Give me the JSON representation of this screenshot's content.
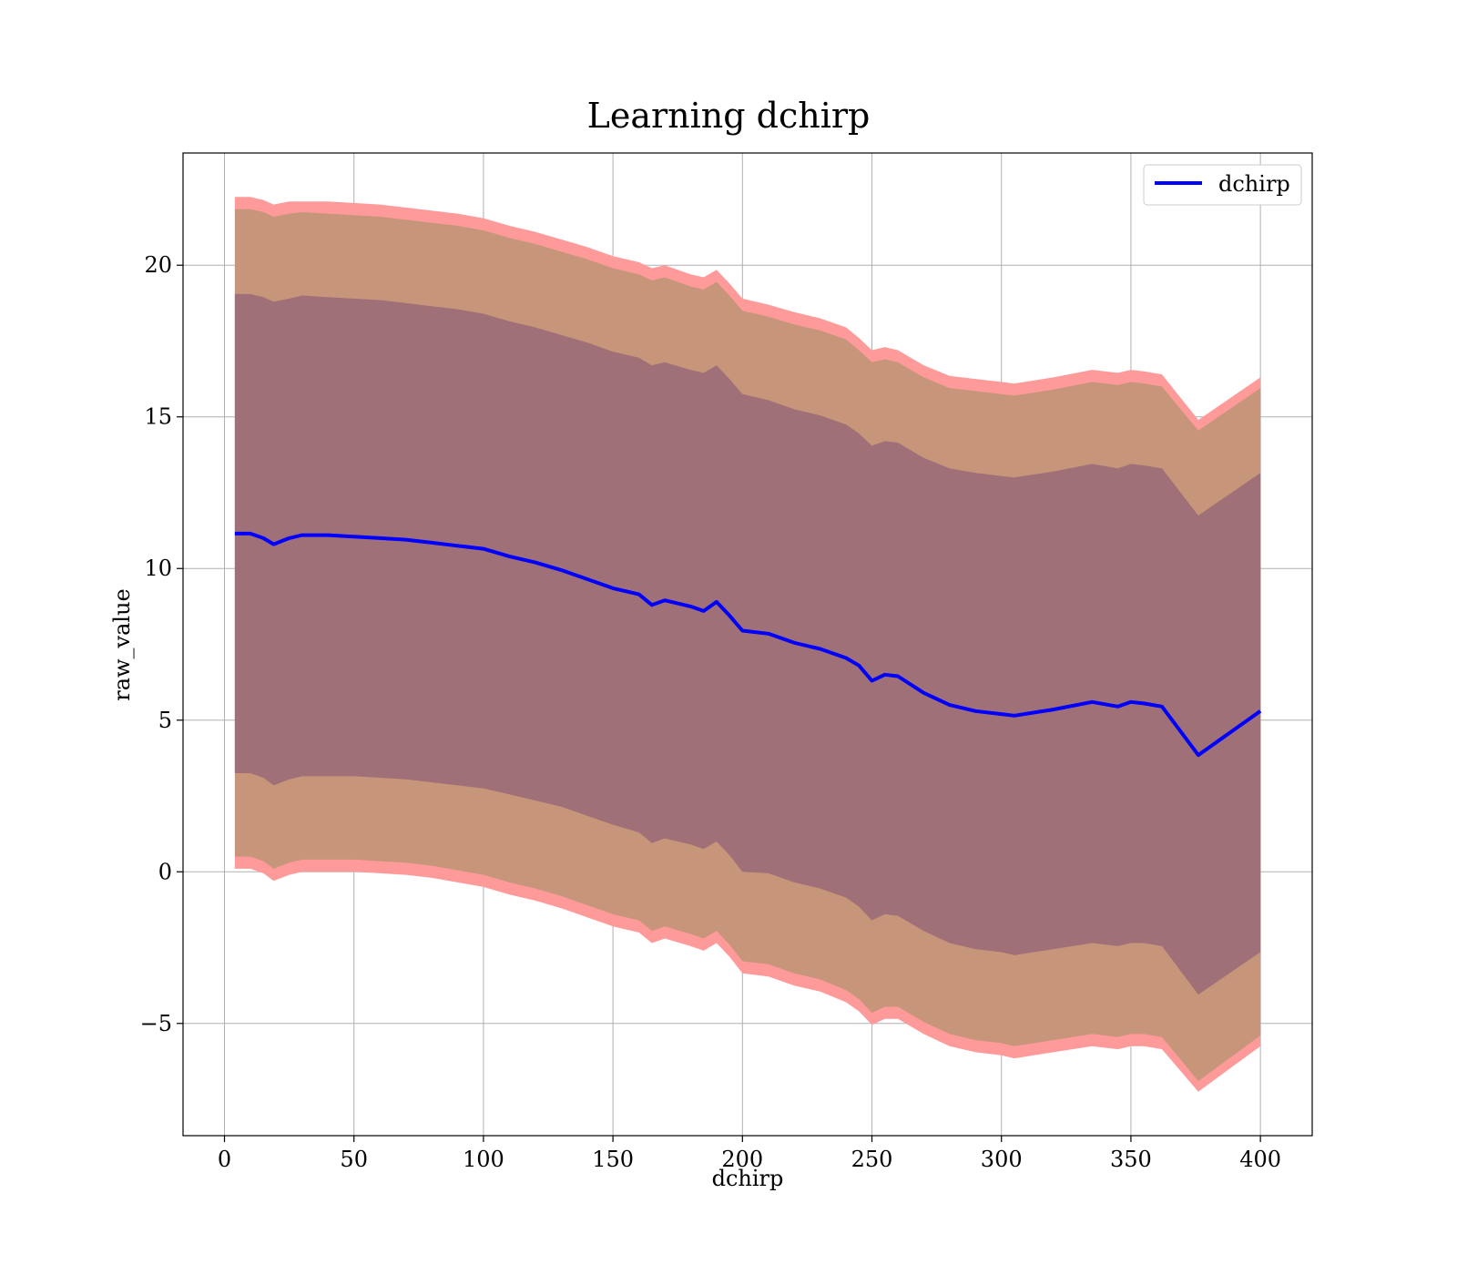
{
  "chart_data": {
    "type": "line",
    "title": "Learning dchirp",
    "xlabel": "dchirp",
    "ylabel": "raw_value",
    "xlim": [
      -16,
      420
    ],
    "ylim": [
      -8.7,
      23.7
    ],
    "xticks": [
      0,
      50,
      100,
      150,
      200,
      250,
      300,
      350,
      400
    ],
    "xtick_labels": [
      "0",
      "50",
      "100",
      "150",
      "200",
      "250",
      "300",
      "350",
      "400"
    ],
    "yticks": [
      -5,
      0,
      5,
      10,
      15,
      20
    ],
    "ytick_labels": [
      "−5",
      "0",
      "5",
      "10",
      "15",
      "20"
    ],
    "grid": true,
    "legend": {
      "placement": "top-right",
      "entries": [
        "dchirp"
      ]
    },
    "colors": {
      "line": "#0000ff",
      "band_outer": "#ff9a9a",
      "band_mid": "#c7967a",
      "band_inner": "#a07078"
    },
    "x": [
      4,
      10,
      15,
      19,
      25,
      30,
      40,
      50,
      60,
      70,
      80,
      90,
      100,
      110,
      120,
      130,
      140,
      150,
      160,
      165,
      170,
      180,
      185,
      190,
      195,
      200,
      210,
      220,
      230,
      240,
      245,
      250,
      255,
      260,
      270,
      280,
      290,
      300,
      305,
      320,
      335,
      345,
      350,
      355,
      362,
      376,
      400
    ],
    "series": [
      {
        "name": "dchirp",
        "values": [
          11.15,
          11.15,
          11.0,
          10.8,
          11.0,
          11.1,
          11.1,
          11.05,
          11.0,
          10.95,
          10.85,
          10.75,
          10.65,
          10.4,
          10.2,
          9.95,
          9.65,
          9.35,
          9.15,
          8.8,
          8.95,
          8.75,
          8.6,
          8.9,
          8.45,
          7.95,
          7.85,
          7.55,
          7.35,
          7.05,
          6.8,
          6.3,
          6.5,
          6.45,
          5.9,
          5.5,
          5.3,
          5.2,
          5.15,
          5.35,
          5.6,
          5.45,
          5.6,
          5.55,
          5.45,
          3.85,
          5.3
        ]
      }
    ],
    "bands": {
      "outer_upper": [
        22.25,
        22.25,
        22.15,
        22.0,
        22.1,
        22.1,
        22.1,
        22.05,
        22.0,
        21.9,
        21.8,
        21.7,
        21.55,
        21.3,
        21.1,
        20.85,
        20.6,
        20.3,
        20.1,
        19.9,
        20.0,
        19.7,
        19.6,
        19.85,
        19.4,
        18.9,
        18.7,
        18.45,
        18.25,
        17.95,
        17.6,
        17.2,
        17.3,
        17.2,
        16.7,
        16.35,
        16.25,
        16.15,
        16.1,
        16.3,
        16.55,
        16.45,
        16.55,
        16.5,
        16.4,
        14.9,
        16.3
      ],
      "mid_upper": [
        21.85,
        21.85,
        21.75,
        21.6,
        21.7,
        21.75,
        21.7,
        21.65,
        21.6,
        21.5,
        21.4,
        21.3,
        21.15,
        20.9,
        20.7,
        20.45,
        20.2,
        19.9,
        19.7,
        19.5,
        19.6,
        19.3,
        19.2,
        19.45,
        19.0,
        18.5,
        18.3,
        18.05,
        17.85,
        17.55,
        17.2,
        16.8,
        16.9,
        16.8,
        16.3,
        15.95,
        15.85,
        15.75,
        15.7,
        15.9,
        16.15,
        16.05,
        16.15,
        16.1,
        16.0,
        14.55,
        15.95
      ],
      "inner_upper": [
        19.05,
        19.05,
        18.95,
        18.8,
        18.9,
        19.0,
        18.95,
        18.9,
        18.85,
        18.75,
        18.65,
        18.55,
        18.4,
        18.15,
        17.95,
        17.7,
        17.45,
        17.15,
        16.95,
        16.7,
        16.8,
        16.55,
        16.45,
        16.7,
        16.25,
        15.75,
        15.55,
        15.25,
        15.05,
        14.75,
        14.45,
        14.05,
        14.2,
        14.15,
        13.65,
        13.3,
        13.15,
        13.05,
        13.0,
        13.2,
        13.45,
        13.3,
        13.45,
        13.4,
        13.3,
        11.75,
        13.15
      ],
      "inner_lower": [
        3.25,
        3.25,
        3.1,
        2.85,
        3.05,
        3.15,
        3.15,
        3.15,
        3.1,
        3.05,
        2.95,
        2.85,
        2.75,
        2.55,
        2.35,
        2.15,
        1.85,
        1.55,
        1.3,
        0.95,
        1.1,
        0.9,
        0.75,
        1.0,
        0.55,
        0.0,
        -0.05,
        -0.35,
        -0.55,
        -0.85,
        -1.15,
        -1.6,
        -1.4,
        -1.45,
        -1.95,
        -2.35,
        -2.55,
        -2.65,
        -2.75,
        -2.55,
        -2.35,
        -2.45,
        -2.35,
        -2.35,
        -2.45,
        -4.05,
        -2.65
      ],
      "mid_lower": [
        0.5,
        0.5,
        0.35,
        0.1,
        0.3,
        0.4,
        0.4,
        0.4,
        0.35,
        0.3,
        0.2,
        0.05,
        -0.1,
        -0.35,
        -0.55,
        -0.8,
        -1.1,
        -1.4,
        -1.6,
        -1.95,
        -1.8,
        -2.05,
        -2.2,
        -1.95,
        -2.4,
        -2.95,
        -3.05,
        -3.35,
        -3.55,
        -3.9,
        -4.2,
        -4.65,
        -4.45,
        -4.45,
        -4.95,
        -5.35,
        -5.55,
        -5.65,
        -5.75,
        -5.55,
        -5.35,
        -5.45,
        -5.35,
        -5.35,
        -5.45,
        -6.9,
        -5.4
      ],
      "outer_lower": [
        0.1,
        0.1,
        -0.05,
        -0.3,
        -0.1,
        0.0,
        0.0,
        0.0,
        -0.05,
        -0.1,
        -0.2,
        -0.35,
        -0.5,
        -0.75,
        -0.95,
        -1.2,
        -1.5,
        -1.8,
        -2.0,
        -2.35,
        -2.2,
        -2.45,
        -2.6,
        -2.35,
        -2.8,
        -3.35,
        -3.45,
        -3.75,
        -3.95,
        -4.3,
        -4.6,
        -5.05,
        -4.85,
        -4.85,
        -5.35,
        -5.75,
        -5.95,
        -6.05,
        -6.15,
        -5.95,
        -5.75,
        -5.85,
        -5.75,
        -5.75,
        -5.85,
        -7.25,
        -5.75
      ]
    }
  }
}
